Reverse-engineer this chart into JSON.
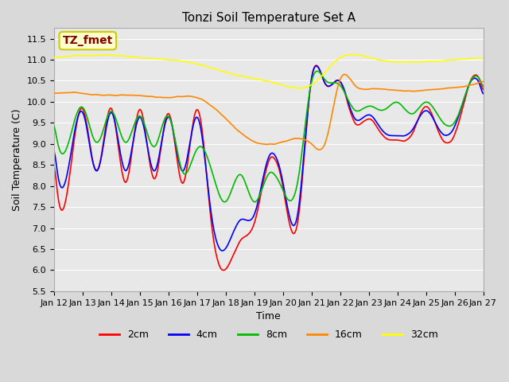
{
  "title": "Tonzi Soil Temperature Set A",
  "xlabel": "Time",
  "ylabel": "Soil Temperature (C)",
  "ylim": [
    5.5,
    11.75
  ],
  "yticks": [
    5.5,
    6.0,
    6.5,
    7.0,
    7.5,
    8.0,
    8.5,
    9.0,
    9.5,
    10.0,
    10.5,
    11.0,
    11.5
  ],
  "bg_color": "#e8e8e8",
  "plot_bg": "#e8e8e8",
  "legend_label": "TZ_fmet",
  "legend_bg": "#ffffcc",
  "legend_border": "#cccc00",
  "series_colors": {
    "2cm": "#ff0000",
    "4cm": "#0000ff",
    "8cm": "#00bb00",
    "16cm": "#ff8800",
    "32cm": "#ffff00"
  },
  "n_points": 360,
  "x_tick_labels": [
    "Jan 12",
    "Jan 13",
    "Jan 14",
    "Jan 15",
    "Jan 16",
    "Jan 17",
    "Jan 18",
    "Jan 19",
    "Jan 20",
    "Jan 21",
    "Jan 22",
    "Jan 23",
    "Jan 24",
    "Jan 25",
    "Jan 26",
    "Jan 27"
  ],
  "x_tick_positions": [
    0,
    24,
    48,
    72,
    96,
    120,
    144,
    168,
    192,
    216,
    240,
    264,
    288,
    312,
    336,
    360
  ]
}
